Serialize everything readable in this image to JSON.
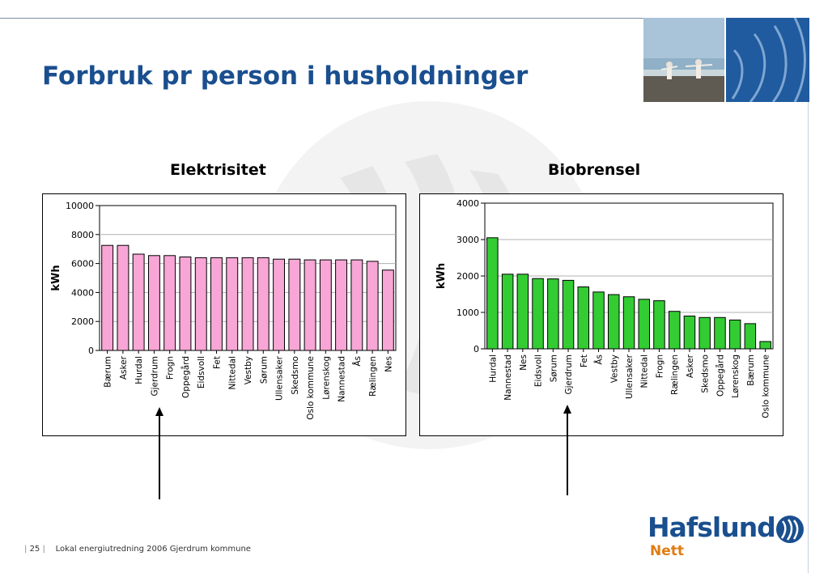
{
  "slide": {
    "title": "Forbruk pr person i husholdninger",
    "footer_page": "25",
    "footer_text": "Lokal energiutredning 2006 Gjerdrum kommune",
    "logo_text": "Hafslund",
    "logo_sub": "Nett"
  },
  "colors": {
    "title": "#1a4f8f",
    "elektrisitet_bar": "#f7a6d6",
    "biobrensel_bar": "#33cc33",
    "logo_orange": "#e07b12"
  },
  "chart_data": [
    {
      "type": "bar",
      "title": "Elektrisitet",
      "ylabel": "kWh",
      "xlabel": "",
      "ylim": [
        0,
        10000
      ],
      "yticks": [
        0,
        2000,
        4000,
        6000,
        8000,
        10000
      ],
      "grid": true,
      "bar_color": "#f7a6d6",
      "categories": [
        "Bærum",
        "Asker",
        "Hurdal",
        "Gjerdrum",
        "Frogn",
        "Oppegård",
        "Eidsvoll",
        "Fet",
        "Nittedal",
        "Vestby",
        "Sørum",
        "Ullensaker",
        "Skedsmo",
        "Oslo kommune",
        "Lørenskog",
        "Nannestad",
        "Ås",
        "Rælingen",
        "Nes"
      ],
      "values": [
        7250,
        7250,
        6650,
        6550,
        6550,
        6450,
        6400,
        6400,
        6400,
        6400,
        6400,
        6300,
        6300,
        6250,
        6250,
        6250,
        6250,
        6150,
        5550
      ],
      "highlight_category": "Gjerdrum"
    },
    {
      "type": "bar",
      "title": "Biobrensel",
      "ylabel": "kWh",
      "xlabel": "",
      "ylim": [
        0,
        4000
      ],
      "yticks": [
        0,
        1000,
        2000,
        3000,
        4000
      ],
      "grid": true,
      "bar_color": "#33cc33",
      "categories": [
        "Hurdal",
        "Nannestad",
        "Nes",
        "Eidsvoll",
        "Sørum",
        "Gjerdrum",
        "Fet",
        "Ås",
        "Vestby",
        "Ullensaker",
        "Nittedal",
        "Frogn",
        "Rælingen",
        "Asker",
        "Skedsmo",
        "Oppegård",
        "Lørenskog",
        "Bærum",
        "Oslo kommune"
      ],
      "values": [
        3050,
        2050,
        2050,
        1930,
        1920,
        1880,
        1700,
        1560,
        1490,
        1430,
        1360,
        1320,
        1030,
        900,
        860,
        860,
        790,
        690,
        200
      ],
      "highlight_category": "Gjerdrum"
    }
  ]
}
